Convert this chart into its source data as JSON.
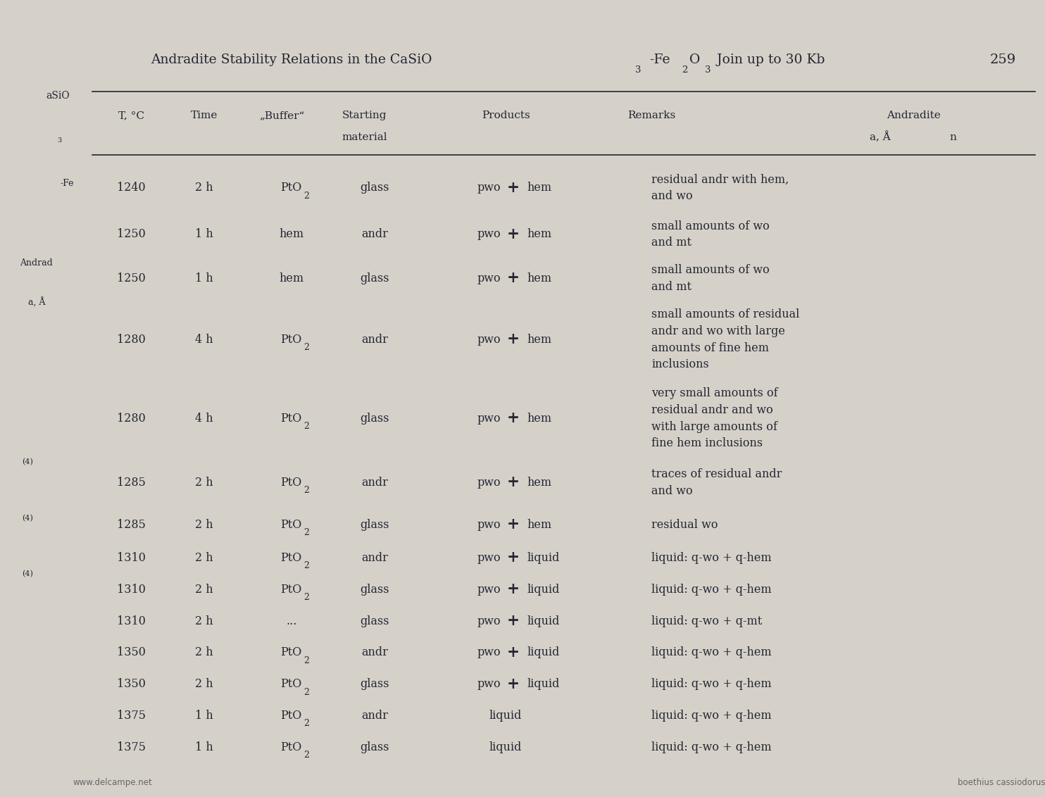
{
  "page_title_parts": [
    "Andradite Stability Relations in the CaSiO",
    "3",
    "-Fe",
    "2",
    "O",
    "3",
    " Join up to 30 Kb"
  ],
  "page_number": "259",
  "col_headers_line1": [
    "T, °C",
    "Time",
    "„Buffer“",
    "Starting",
    "Products",
    "Remarks",
    "Andradite"
  ],
  "col_headers_line2": [
    "",
    "",
    "",
    "material",
    "",
    "",
    "a, Å          n"
  ],
  "rows": [
    [
      "1240",
      "2 h",
      "PtO2",
      "glass",
      "pwo + hem",
      "residual andr with hem,\nand wo",
      ""
    ],
    [
      "1250",
      "1 h",
      "hem",
      "andr",
      "pwo + hem",
      "small amounts of wo\nand mt",
      ""
    ],
    [
      "1250",
      "1 h",
      "hem",
      "glass",
      "pwo + hem",
      "small amounts of wo\nand mt",
      ""
    ],
    [
      "1280",
      "4 h",
      "PtO2",
      "andr",
      "pwo + hem",
      "small amounts of residual\nandr and wo with large\namounts of fine hem\ninclusions",
      ""
    ],
    [
      "1280",
      "4 h",
      "PtO2",
      "glass",
      "pwo + hem",
      "very small amounts of\nresidual andr and wo\nwith large amounts of\nfine hem inclusions",
      ""
    ],
    [
      "1285",
      "2 h",
      "PtO2",
      "andr",
      "pwo + hem",
      "traces of residual andr\nand wo",
      ""
    ],
    [
      "1285",
      "2 h",
      "PtO2",
      "glass",
      "pwo + hem",
      "residual wo",
      ""
    ],
    [
      "1310",
      "2 h",
      "PtO2",
      "andr",
      "pwo + liquid",
      "liquid: q-wo + q-hem",
      ""
    ],
    [
      "1310",
      "2 h",
      "PtO2",
      "glass",
      "pwo + liquid",
      "liquid: q-wo + q-hem",
      ""
    ],
    [
      "1310",
      "2 h",
      "...",
      "glass",
      "pwo + liquid",
      "liquid: q-wo + q-mt",
      ""
    ],
    [
      "1350",
      "2 h",
      "PtO2",
      "andr",
      "pwo + liquid",
      "liquid: q-wo + q-hem",
      ""
    ],
    [
      "1350",
      "2 h",
      "PtO2",
      "glass",
      "pwo + liquid",
      "liquid: q-wo + q-hem",
      ""
    ],
    [
      "1375",
      "1 h",
      "PtO2",
      "andr",
      "liquid",
      "liquid: q-wo + q-hem",
      ""
    ],
    [
      "1375",
      "1 h",
      "PtO2",
      "glass",
      "liquid",
      "liquid: q-wo + q-hem",
      ""
    ]
  ],
  "bg_color": "#d5d1c8",
  "text_color": "#252535",
  "left_panel_color": "#b0aca4",
  "line_color": "#252535"
}
